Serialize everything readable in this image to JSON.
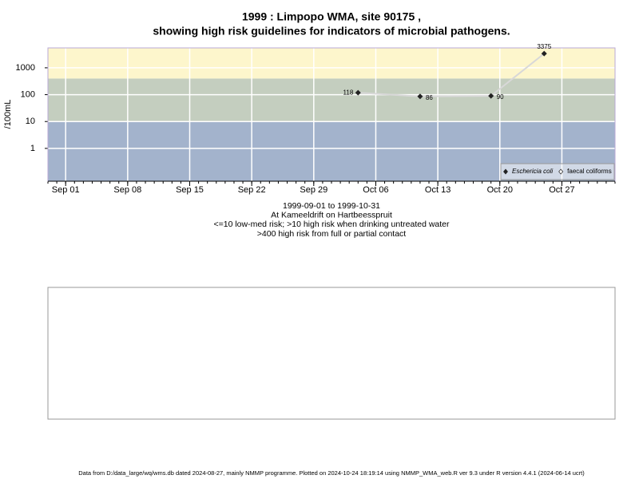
{
  "chart_data": {
    "type": "line",
    "title_lines": [
      "1999 : Limpopo WMA, site 90175 ,",
      "showing high risk guidelines for indicators of microbial pathogens."
    ],
    "y_label": "/100mL",
    "log_y": true,
    "ylim": [
      0.06,
      5500
    ],
    "yticks": [
      1,
      10,
      100,
      1000
    ],
    "xlim": [
      "1999-08-30",
      "1999-11-02"
    ],
    "xticks": [
      {
        "value": "1999-09-01",
        "label": "Sep 01"
      },
      {
        "value": "1999-09-08",
        "label": "Sep 08"
      },
      {
        "value": "1999-09-15",
        "label": "Sep 15"
      },
      {
        "value": "1999-09-22",
        "label": "Sep 22"
      },
      {
        "value": "1999-09-29",
        "label": "Sep 29"
      },
      {
        "value": "1999-10-06",
        "label": "Oct 06"
      },
      {
        "value": "1999-10-13",
        "label": "Oct 13"
      },
      {
        "value": "1999-10-20",
        "label": "Oct 20"
      },
      {
        "value": "1999-10-27",
        "label": "Oct 27"
      }
    ],
    "grid": true,
    "thresholds": [
      10,
      400
    ],
    "band_colors": [
      "#a3b3cc",
      "#c4cebf",
      "#fdf6cc"
    ],
    "x": [
      "1999-10-04",
      "1999-10-11",
      "1999-10-19",
      "1999-10-25"
    ],
    "series": [
      {
        "name": "Eschericia coli",
        "color": "#222222",
        "line_color": "#d8d8d8",
        "values": [
          118,
          86,
          90,
          3375
        ]
      },
      {
        "name": "faecal coliforms",
        "color": "#222222",
        "values": [
          null,
          null,
          null,
          null
        ]
      }
    ],
    "legend": "bottom-right",
    "notes": [
      "1999-09-01 to 1999-10-31",
      "At Kameeldrift on Hartbeesspruit",
      "<=10 low-med risk; >10 high risk when drinking untreated water",
      ">400 high risk from full or partial contact"
    ],
    "footer": "Data from D:/data_large/wq/wms.db dated 2024-08-27, mainly NMMP programme. Plotted on 2024-10-24 18:19:14 using NMMP_WMA_web.R ver 9.3 under R version 4.4.1 (2024-06-14 ucrt)"
  }
}
